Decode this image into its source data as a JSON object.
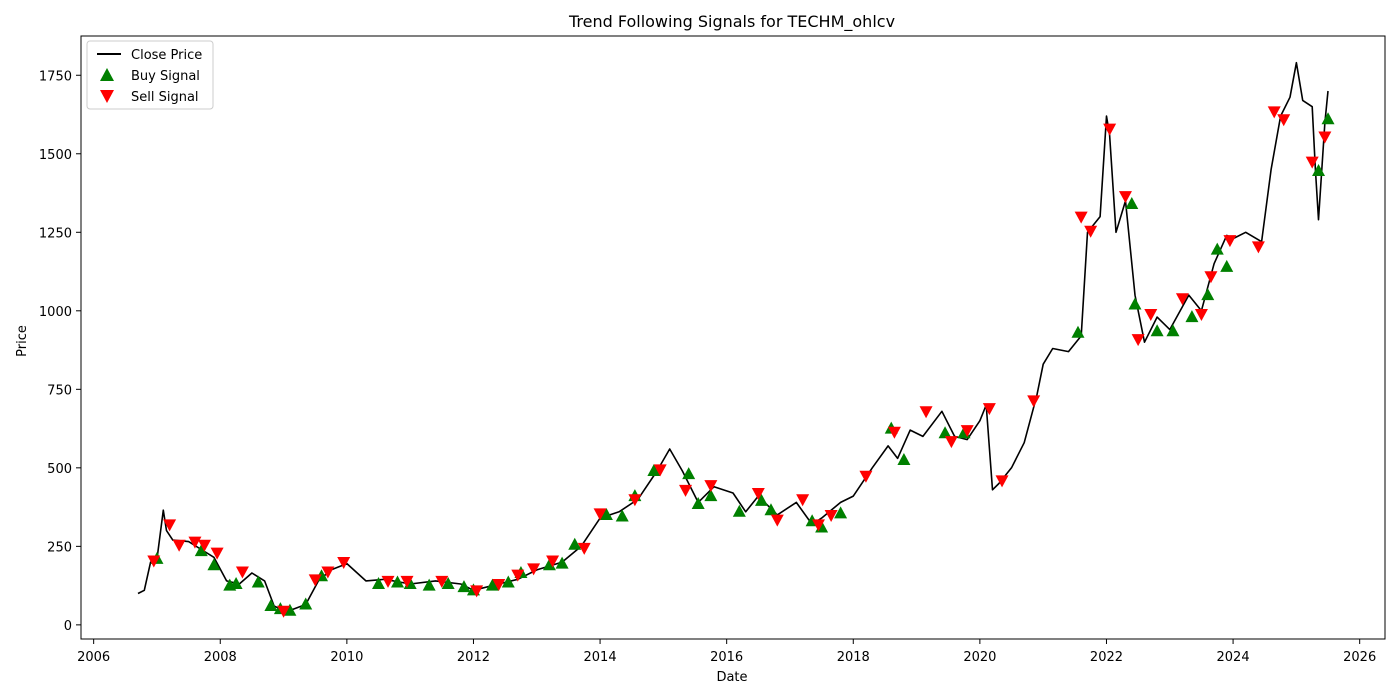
{
  "chart_data": {
    "type": "line",
    "title": "Trend Following Signals for TECHM_ohlcv",
    "xlabel": "Date",
    "ylabel": "Price",
    "xlim": [
      2005.8,
      2026.4
    ],
    "ylim": [
      -45,
      1875
    ],
    "xticks": [
      2006,
      2008,
      2010,
      2012,
      2014,
      2016,
      2018,
      2020,
      2022,
      2024,
      2026
    ],
    "yticks": [
      0,
      250,
      500,
      750,
      1000,
      1250,
      1500,
      1750
    ],
    "grid": false,
    "legend_position": "upper-left",
    "colors": {
      "close": "#000000",
      "buy": "#008000",
      "sell": "#ff0000"
    },
    "series": [
      {
        "name": "Close Price",
        "kind": "line",
        "x": [
          2006.7,
          2006.8,
          2006.9,
          2007.0,
          2007.1,
          2007.15,
          2007.25,
          2007.5,
          2007.7,
          2007.9,
          2008.1,
          2008.3,
          2008.5,
          2008.7,
          2008.85,
          2009.0,
          2009.15,
          2009.35,
          2009.55,
          2009.75,
          2010.0,
          2010.3,
          2010.6,
          2011.0,
          2011.4,
          2011.8,
          2012.0,
          2012.4,
          2012.7,
          2013.0,
          2013.4,
          2013.7,
          2014.0,
          2014.3,
          2014.6,
          2014.9,
          2015.1,
          2015.3,
          2015.55,
          2015.8,
          2016.1,
          2016.3,
          2016.5,
          2016.8,
          2017.1,
          2017.35,
          2017.5,
          2017.8,
          2018.0,
          2018.3,
          2018.55,
          2018.7,
          2018.9,
          2019.1,
          2019.4,
          2019.6,
          2019.8,
          2020.0,
          2020.1,
          2020.2,
          2020.3,
          2020.5,
          2020.7,
          2020.9,
          2021.0,
          2021.15,
          2021.4,
          2021.6,
          2021.7,
          2021.9,
          2022.0,
          2022.05,
          2022.15,
          2022.3,
          2022.45,
          2022.6,
          2022.8,
          2023.0,
          2023.3,
          2023.5,
          2023.7,
          2023.9,
          2024.0,
          2024.2,
          2024.45,
          2024.6,
          2024.75,
          2024.9,
          2025.0,
          2025.1,
          2025.25,
          2025.3,
          2025.35,
          2025.45,
          2025.5
        ],
        "y": [
          100,
          110,
          200,
          210,
          365,
          300,
          270,
          265,
          240,
          215,
          140,
          130,
          165,
          140,
          60,
          45,
          50,
          65,
          140,
          175,
          195,
          140,
          145,
          130,
          140,
          130,
          110,
          130,
          145,
          175,
          200,
          250,
          340,
          360,
          400,
          490,
          560,
          490,
          390,
          440,
          420,
          360,
          410,
          350,
          390,
          320,
          340,
          390,
          410,
          500,
          570,
          530,
          620,
          600,
          680,
          600,
          590,
          650,
          700,
          430,
          450,
          500,
          580,
          730,
          830,
          880,
          870,
          920,
          1250,
          1300,
          1620,
          1560,
          1250,
          1350,
          1050,
          900,
          980,
          940,
          1050,
          1000,
          1150,
          1240,
          1230,
          1250,
          1220,
          1450,
          1620,
          1680,
          1790,
          1670,
          1650,
          1450,
          1290,
          1600,
          1700
        ]
      },
      {
        "name": "Buy Signal",
        "kind": "scatter",
        "marker": "triangle-up",
        "x": [
          2007.0,
          2007.7,
          2007.9,
          2008.15,
          2008.25,
          2008.6,
          2008.8,
          2008.95,
          2009.1,
          2009.35,
          2009.6,
          2010.5,
          2010.8,
          2011.0,
          2011.3,
          2011.6,
          2011.85,
          2012.0,
          2012.3,
          2012.55,
          2012.75,
          2013.2,
          2013.4,
          2013.6,
          2014.1,
          2014.35,
          2014.55,
          2014.85,
          2015.4,
          2015.55,
          2015.75,
          2016.2,
          2016.55,
          2016.7,
          2017.35,
          2017.5,
          2017.8,
          2018.6,
          2018.8,
          2019.45,
          2019.75,
          2021.55,
          2022.4,
          2022.45,
          2022.8,
          2023.05,
          2023.35,
          2023.6,
          2023.75,
          2023.9,
          2025.35,
          2025.5
        ],
        "y": [
          210,
          235,
          190,
          125,
          130,
          135,
          60,
          50,
          45,
          65,
          155,
          130,
          135,
          130,
          125,
          130,
          120,
          110,
          125,
          135,
          165,
          190,
          195,
          255,
          350,
          345,
          410,
          490,
          480,
          385,
          410,
          360,
          395,
          365,
          330,
          310,
          355,
          625,
          525,
          610,
          610,
          930,
          1340,
          1020,
          935,
          935,
          980,
          1050,
          1195,
          1140,
          1445,
          1610
        ]
      },
      {
        "name": "Sell Signal",
        "kind": "scatter",
        "marker": "triangle-down",
        "x": [
          2006.95,
          2007.2,
          2007.35,
          2007.6,
          2007.75,
          2007.95,
          2008.35,
          2009.0,
          2009.5,
          2009.7,
          2009.95,
          2010.65,
          2010.95,
          2011.5,
          2012.05,
          2012.4,
          2012.7,
          2012.95,
          2013.25,
          2013.75,
          2014.0,
          2014.55,
          2014.95,
          2015.35,
          2015.75,
          2016.5,
          2016.8,
          2017.2,
          2017.45,
          2017.65,
          2018.2,
          2018.65,
          2019.15,
          2019.55,
          2019.8,
          2020.15,
          2020.35,
          2020.85,
          2021.6,
          2021.75,
          2022.05,
          2022.3,
          2022.5,
          2022.7,
          2023.2,
          2023.5,
          2023.65,
          2023.95,
          2024.4,
          2024.65,
          2024.8,
          2025.25,
          2025.45
        ],
        "y": [
          205,
          320,
          255,
          265,
          255,
          230,
          170,
          45,
          145,
          170,
          200,
          140,
          140,
          140,
          110,
          130,
          160,
          180,
          205,
          245,
          355,
          400,
          495,
          430,
          445,
          420,
          335,
          400,
          320,
          350,
          475,
          615,
          680,
          585,
          620,
          690,
          460,
          715,
          1300,
          1255,
          1580,
          1365,
          910,
          990,
          1040,
          990,
          1110,
          1225,
          1205,
          1635,
          1610,
          1475,
          1555
        ]
      }
    ]
  }
}
